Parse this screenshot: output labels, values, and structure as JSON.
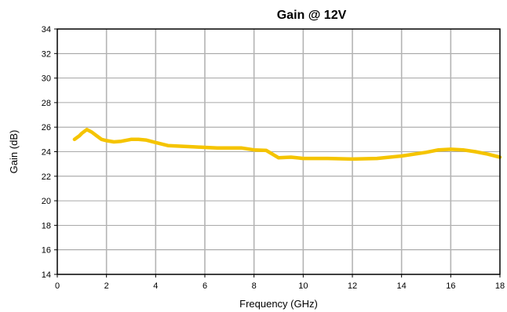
{
  "chart_data": {
    "type": "line",
    "title": "Gain @ 12V",
    "xlabel": "Frequency (GHz)",
    "ylabel": "Gain (dB)",
    "xlim": [
      0,
      18
    ],
    "ylim": [
      14,
      34
    ],
    "xticks": [
      0,
      2,
      4,
      6,
      8,
      10,
      12,
      14,
      16,
      18
    ],
    "yticks": [
      14,
      16,
      18,
      20,
      22,
      24,
      26,
      28,
      30,
      32,
      34
    ],
    "grid": {
      "vertical": true,
      "horizontal": true
    },
    "legend": "none",
    "series": [
      {
        "color": "#F5C400",
        "points": [
          [
            0.7,
            25.0
          ],
          [
            0.9,
            25.3
          ],
          [
            1.0,
            25.5
          ],
          [
            1.2,
            25.8
          ],
          [
            1.4,
            25.6
          ],
          [
            1.6,
            25.3
          ],
          [
            1.8,
            25.0
          ],
          [
            2.0,
            24.9
          ],
          [
            2.3,
            24.8
          ],
          [
            2.6,
            24.85
          ],
          [
            3.0,
            25.0
          ],
          [
            3.3,
            25.0
          ],
          [
            3.6,
            24.95
          ],
          [
            4.0,
            24.75
          ],
          [
            4.5,
            24.5
          ],
          [
            5.0,
            24.45
          ],
          [
            5.5,
            24.4
          ],
          [
            6.0,
            24.35
          ],
          [
            6.5,
            24.3
          ],
          [
            7.0,
            24.3
          ],
          [
            7.5,
            24.3
          ],
          [
            8.0,
            24.15
          ],
          [
            8.5,
            24.1
          ],
          [
            9.0,
            23.5
          ],
          [
            9.5,
            23.55
          ],
          [
            10.0,
            23.45
          ],
          [
            11.0,
            23.45
          ],
          [
            12.0,
            23.4
          ],
          [
            13.0,
            23.45
          ],
          [
            14.0,
            23.65
          ],
          [
            15.0,
            23.95
          ],
          [
            15.5,
            24.15
          ],
          [
            16.0,
            24.2
          ],
          [
            16.5,
            24.15
          ],
          [
            17.0,
            24.0
          ],
          [
            17.5,
            23.8
          ],
          [
            18.0,
            23.55
          ]
        ]
      }
    ]
  }
}
